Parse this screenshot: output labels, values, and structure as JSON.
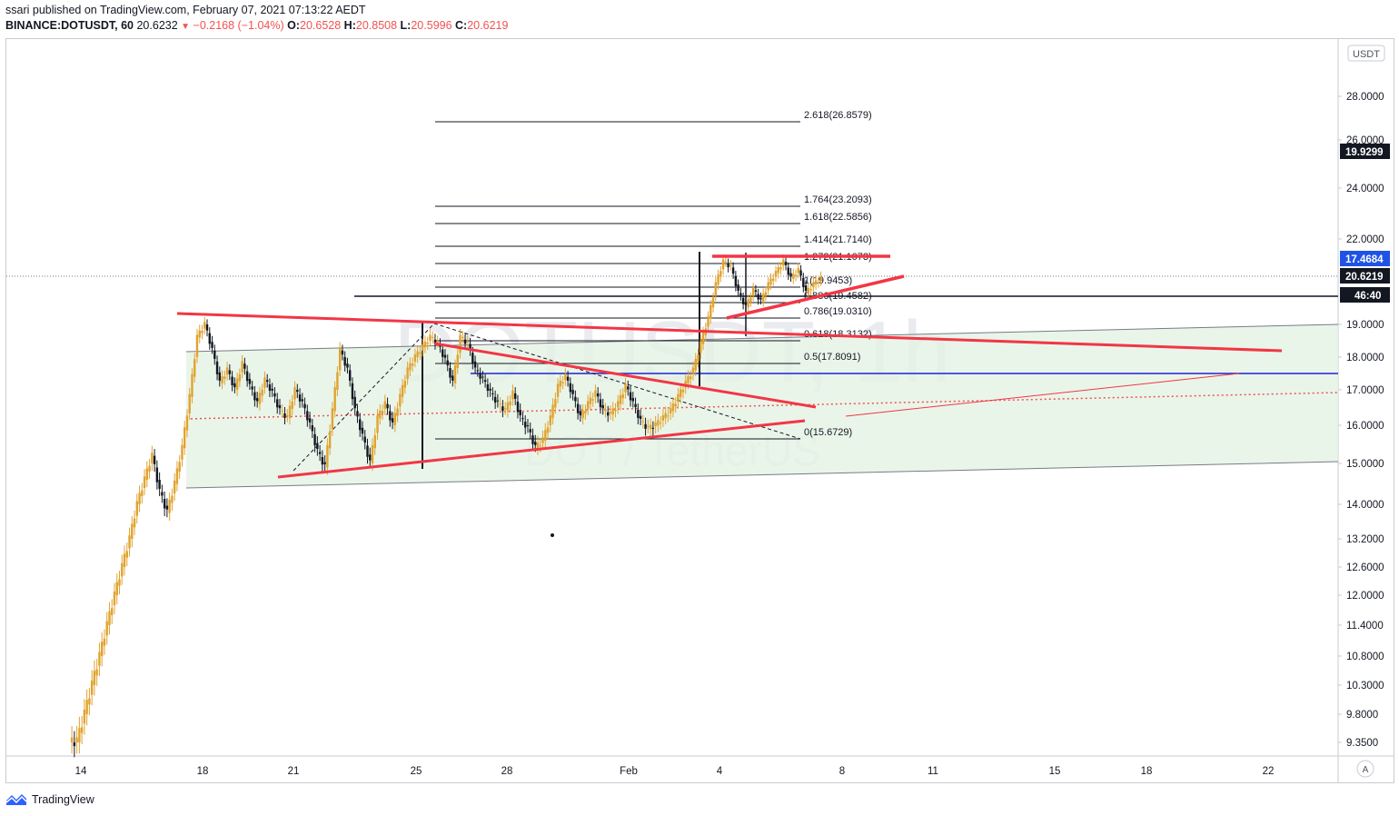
{
  "header": {
    "publisher": "ssari published on TradingView.com, February 07, 2021 07:13:22 AEDT",
    "symbol": "BINANCE:DOTUSDT, 60",
    "last": "20.6232",
    "change": "−0.2168 (−1.04%)",
    "o_label": "O:",
    "o_value": "20.6528",
    "h_label": "H:",
    "h_value": "20.8508",
    "l_label": "L:",
    "l_value": "20.5996",
    "c_label": "C:",
    "c_value": "20.6219"
  },
  "footer": {
    "brand": "TradingView"
  },
  "chart_data": {
    "type": "candlestick",
    "title": "",
    "watermark_symbol": "DOTUSDT, 1h",
    "watermark_pair": "DOT / TetherUS",
    "currency_label": "USDT",
    "auto_scale_label": "A",
    "y_ticks": [
      "28.0000",
      "26.0000",
      "24.0000",
      "22.0000",
      "19.0000",
      "18.0000",
      "17.0000",
      "16.0000",
      "15.0000",
      "14.0000",
      "13.2000",
      "12.6000",
      "12.0000",
      "11.4000",
      "10.8000",
      "10.3000",
      "9.8000",
      "9.3500"
    ],
    "x_ticks": [
      "14",
      "18",
      "21",
      "25",
      "28",
      "Feb",
      "4",
      "8",
      "11",
      "15",
      "18",
      "22"
    ],
    "price_tags": [
      {
        "value": "19.9299",
        "bg": "#131722",
        "fg": "#ffffff"
      },
      {
        "value": "17.4684",
        "bg": "#1e53e5",
        "fg": "#ffffff"
      },
      {
        "value": "20.6219",
        "bg": "#131722",
        "fg": "#ffffff"
      },
      {
        "value": "46:40",
        "bg": "#131722",
        "fg": "#ffffff"
      }
    ],
    "fib_levels": [
      {
        "ratio": "2.618",
        "price": "26.8579",
        "label": "2.618(26.8579)"
      },
      {
        "ratio": "1.764",
        "price": "23.2093",
        "label": "1.764(23.2093)"
      },
      {
        "ratio": "1.618",
        "price": "22.5856",
        "label": "1.618(22.5856)"
      },
      {
        "ratio": "1.414",
        "price": "21.7140",
        "label": "1.414(21.7140)"
      },
      {
        "ratio": "1.272",
        "price": "21.1073",
        "label": "1.272(21.1073)"
      },
      {
        "ratio": "1",
        "price": "19.9453",
        "label": "1(19.9453)"
      },
      {
        "ratio": "0.886",
        "price": "19.4582",
        "label": "0.886(19.4582)"
      },
      {
        "ratio": "0.786",
        "price": "19.0310",
        "label": "0.786(19.0310)"
      },
      {
        "ratio": "0.618",
        "price": "18.3132",
        "label": "0.618(18.3132)"
      },
      {
        "ratio": "0.5",
        "price": "17.8091",
        "label": "0.5(17.8091)"
      },
      {
        "ratio": "0",
        "price": "15.6729",
        "label": "0(15.6729)"
      }
    ],
    "candles_close_path": [
      9.35,
      9.8,
      10.3,
      10.8,
      11.4,
      12.0,
      12.6,
      13.2,
      14.0,
      14.6,
      15.2,
      14.3,
      13.8,
      14.5,
      15.4,
      16.8,
      18.6,
      19.0,
      18.2,
      17.2,
      17.6,
      17.0,
      17.8,
      17.1,
      16.6,
      17.3,
      16.9,
      16.4,
      16.2,
      17.0,
      16.6,
      16.0,
      15.3,
      14.9,
      16.4,
      18.2,
      17.6,
      16.4,
      15.7,
      15.0,
      16.2,
      16.6,
      16.0,
      16.8,
      17.6,
      18.0,
      18.3,
      18.6,
      18.4,
      17.9,
      17.2,
      18.6,
      18.4,
      17.6,
      17.3,
      16.9,
      16.6,
      16.4,
      16.9,
      16.2,
      15.9,
      15.4,
      15.6,
      16.2,
      17.1,
      17.4,
      16.8,
      16.2,
      16.6,
      16.9,
      16.4,
      16.3,
      16.6,
      17.1,
      16.6,
      16.1,
      15.9,
      16.0,
      16.2,
      16.4,
      16.8,
      17.2,
      17.6,
      18.4,
      19.2,
      20.4,
      21.2,
      21.0,
      20.1,
      19.6,
      20.2,
      19.8,
      20.4,
      20.8,
      21.2,
      20.6,
      20.9,
      20.1,
      20.4,
      20.6
    ],
    "annotations": {
      "grid": false,
      "note": "trendlines, fib extension, channel shading"
    }
  }
}
